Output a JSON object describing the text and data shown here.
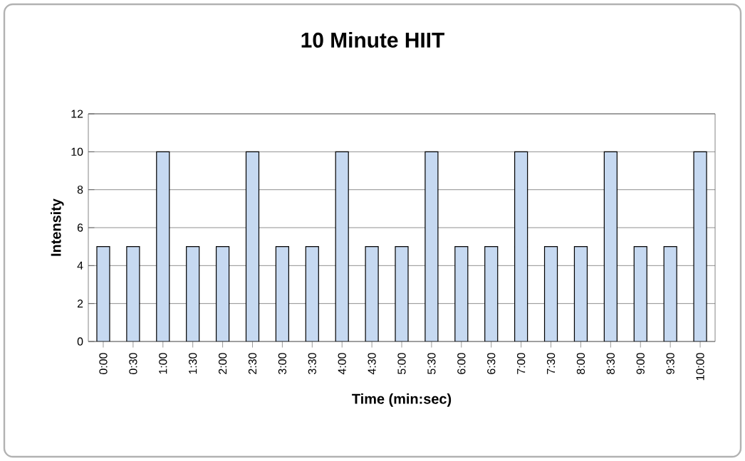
{
  "chart_data": {
    "type": "bar",
    "title": "10 Minute HIIT",
    "xlabel": "Time (min:sec)",
    "ylabel": "Intensity",
    "categories": [
      "0:00",
      "0:30",
      "1:00",
      "1:30",
      "2:00",
      "2:30",
      "3:00",
      "3:30",
      "4:00",
      "4:30",
      "5:00",
      "5:30",
      "6:00",
      "6:30",
      "7:00",
      "7:30",
      "8:00",
      "8:30",
      "9:00",
      "9:30",
      "10:00"
    ],
    "values": [
      5,
      5,
      10,
      5,
      5,
      10,
      5,
      5,
      10,
      5,
      5,
      10,
      5,
      5,
      10,
      5,
      5,
      10,
      5,
      5,
      10
    ],
    "color": "#c6d9f1",
    "ylim": [
      0,
      12
    ],
    "yticks": [
      0,
      2,
      4,
      6,
      8,
      10,
      12
    ],
    "grid": "y"
  }
}
